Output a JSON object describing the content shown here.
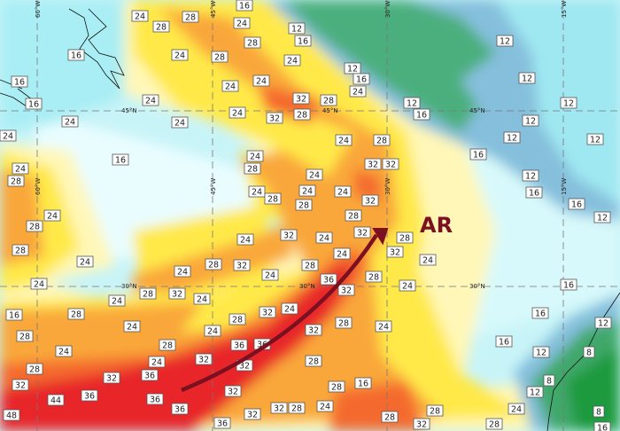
{
  "map": {
    "annotation": "AR",
    "latitude_labels": [
      "45°N",
      "30°N"
    ],
    "longitude_labels": [
      "60°W",
      "45°W",
      "30°W",
      "15°W"
    ],
    "contour_values": [
      "24",
      "28",
      "16",
      "24",
      "28",
      "24",
      "12",
      "16",
      "24",
      "28",
      "28",
      "24",
      "24",
      "16",
      "16",
      "16",
      "24",
      "24",
      "24",
      "24",
      "32",
      "32",
      "28",
      "24",
      "12",
      "16",
      "24",
      "28",
      "12",
      "16",
      "12",
      "12",
      "12",
      "12",
      "12",
      "12",
      "16",
      "24",
      "28",
      "24",
      "28",
      "24",
      "28",
      "24",
      "24",
      "28",
      "32",
      "24",
      "32",
      "28",
      "24",
      "24",
      "24",
      "28",
      "24",
      "28",
      "24",
      "24",
      "28",
      "32",
      "32",
      "24",
      "28",
      "32",
      "32",
      "24",
      "28",
      "32",
      "24",
      "24",
      "36",
      "32",
      "28",
      "24",
      "28",
      "24",
      "32",
      "28",
      "28",
      "24",
      "28",
      "32",
      "28",
      "24",
      "28",
      "16",
      "16",
      "12",
      "16",
      "12",
      "8",
      "8",
      "12",
      "8",
      "16",
      "12",
      "16",
      "16",
      "12",
      "16",
      "24",
      "28",
      "32",
      "24",
      "28",
      "24",
      "28",
      "24",
      "24",
      "28",
      "24",
      "28",
      "24",
      "32",
      "36",
      "32",
      "36",
      "44",
      "48",
      "32",
      "28",
      "36",
      "36",
      "36",
      "32",
      "36",
      "32",
      "32",
      "28",
      "36",
      "32",
      "32",
      "28",
      "16",
      "16"
    ],
    "colors": {
      "annotation": "#7a1020",
      "arrow": "#7a1020",
      "low": "#c8f4f8",
      "yellow": "#ffe94a",
      "orange": "#f9a73a",
      "red": "#e8262a",
      "blue": "#85bfdc",
      "green": "#4caf7d"
    }
  }
}
